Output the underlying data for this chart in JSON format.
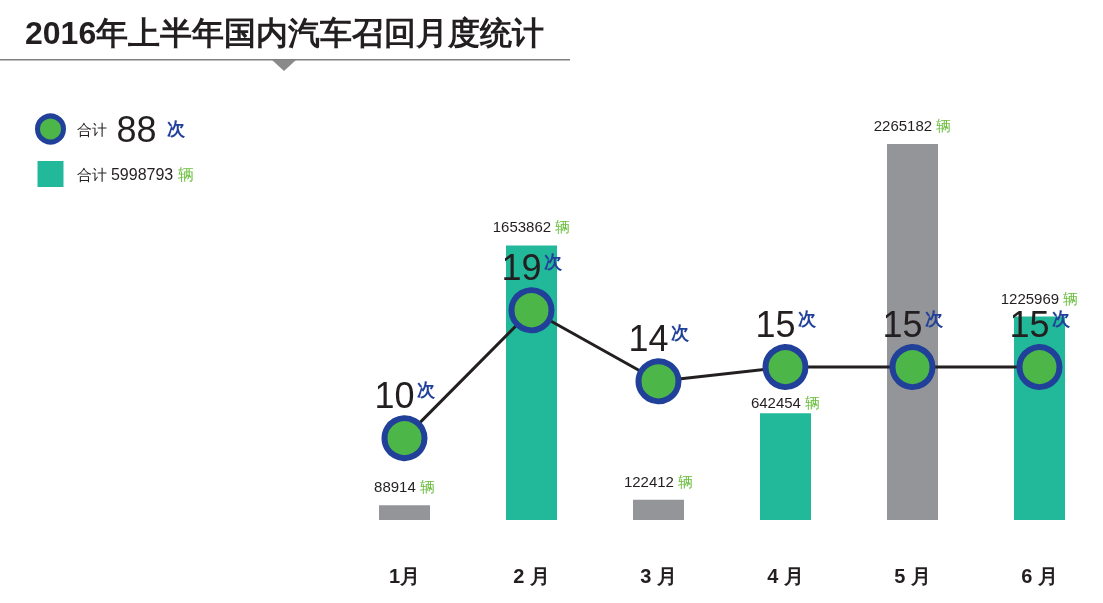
{
  "chart_data": {
    "type": "bar",
    "title": "2016年上半年国内汽车召回月度统计",
    "categories": [
      "1月",
      "2 月",
      "3 月",
      "4 月",
      "5 月",
      "6 月"
    ],
    "series": [
      {
        "name": "合计 88 次",
        "type": "line",
        "axis": "y2",
        "color": "#231f20",
        "values": [
          10,
          19,
          14,
          15,
          15,
          15
        ],
        "value_labels": [
          "10次",
          "19次",
          "14次",
          "15次",
          "15次",
          "15次"
        ]
      },
      {
        "name": "合计 5998793 辆",
        "color": "#22b89a",
        "colors": [
          "#939598",
          "#22b89a",
          "#939598",
          "#22b89a",
          "#939598",
          "#22b89a"
        ],
        "values": [
          88914,
          1653862,
          122412,
          642454,
          2265182,
          1225969
        ],
        "value_labels": [
          "88914 辆",
          "1653862 辆",
          "122412 辆",
          "642454 辆",
          "2265182 辆",
          "1225969 辆"
        ]
      }
    ],
    "legend": "top left",
    "marker": "circle",
    "line_style": "solid",
    "tick_labels": "x"
  }
}
